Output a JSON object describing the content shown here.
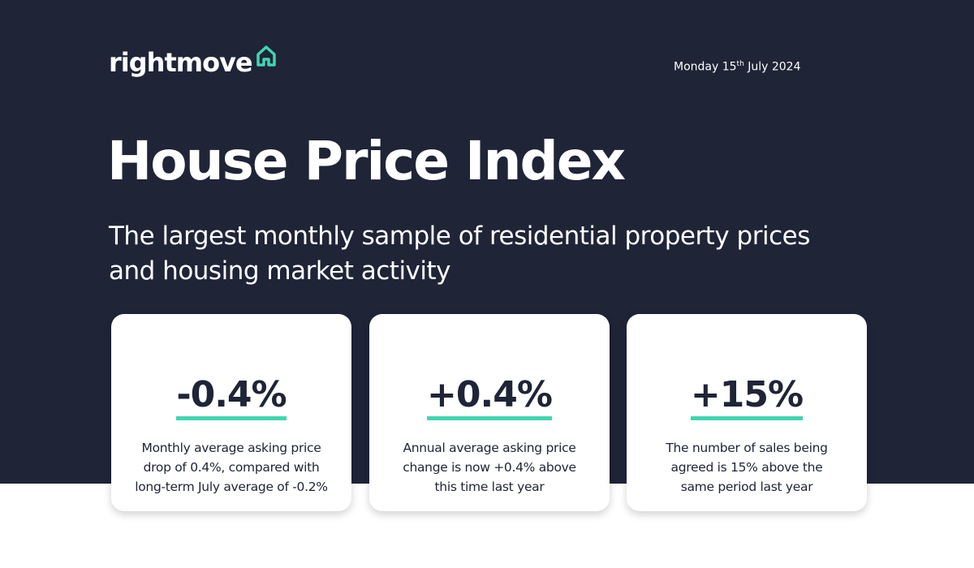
{
  "header": {
    "logo": "rightmove",
    "date": {
      "weekday_day": "Monday 15",
      "suffix": "th",
      "month_year": "July 2024"
    }
  },
  "title": "House Price Index",
  "subtitle": [
    "The largest monthly sample of residential property prices",
    "and housing market activity"
  ],
  "cards": [
    {
      "value": "-0.4%",
      "description": [
        "Monthly average asking price",
        "drop of 0.4%, compared with",
        "long-term July average of -0.2%"
      ]
    },
    {
      "value": "+0.4%",
      "description": [
        "Annual average asking price",
        "change is now +0.4% above",
        "this time last year"
      ]
    },
    {
      "value": "+15%",
      "description": [
        "The number of sales being",
        "agreed is 15% above the",
        "same period last year"
      ]
    }
  ]
}
